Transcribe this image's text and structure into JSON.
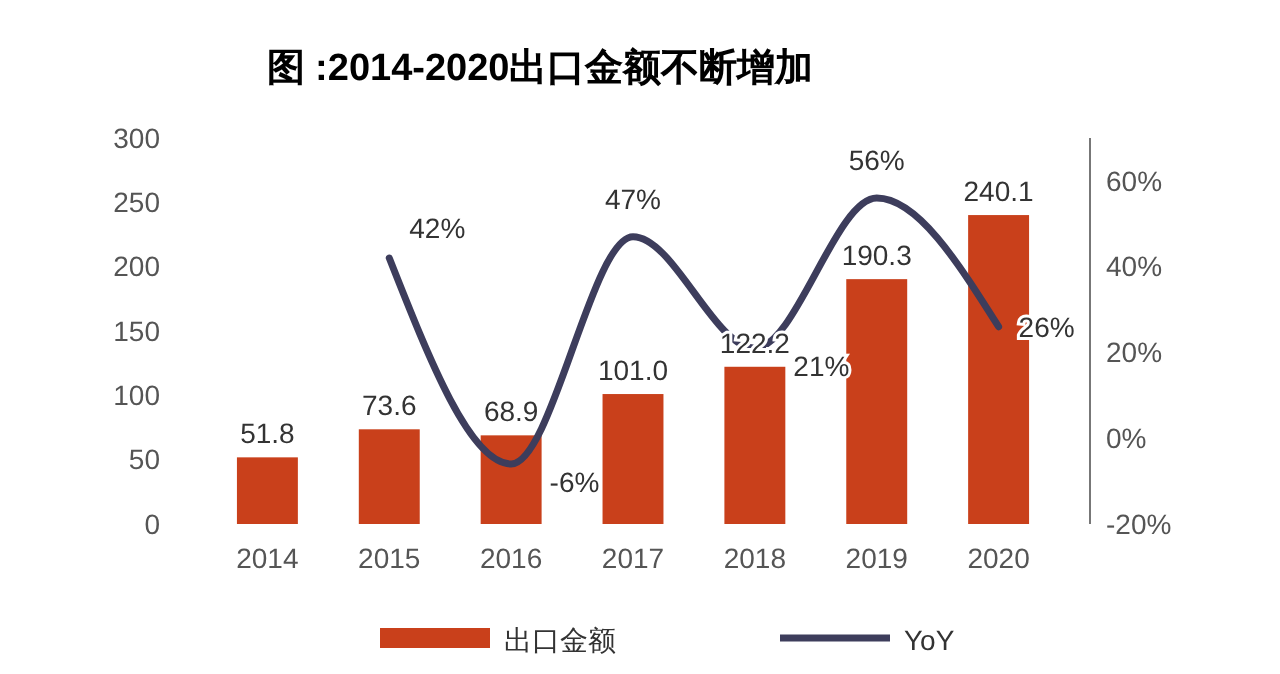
{
  "chart_data": {
    "type": "bar",
    "title": "图 :2014-2020出口金额不断增加",
    "categories": [
      "2014",
      "2015",
      "2016",
      "2017",
      "2018",
      "2019",
      "2020"
    ],
    "series": [
      {
        "name": "出口金额",
        "color": "#c9401b",
        "values": [
          51.8,
          73.6,
          68.9,
          101.0,
          122.2,
          190.3,
          240.1
        ],
        "value_labels": [
          "51.8",
          "73.6",
          "68.9",
          "101.0",
          "122.2",
          "190.3",
          "240.1"
        ]
      },
      {
        "name": "YoY",
        "type": "line",
        "axis": "y2",
        "color": "#3d3d5c",
        "values": [
          null,
          42,
          -6,
          47,
          21,
          56,
          26
        ],
        "value_labels": [
          null,
          "42%",
          "-6%",
          "47%",
          "21%",
          "56%",
          "26%"
        ]
      }
    ],
    "ylim": [
      0,
      300
    ],
    "yticks": [
      0,
      50,
      100,
      150,
      200,
      250,
      300
    ],
    "y2lim": [
      -20,
      70
    ],
    "y2ticks": [
      {
        "value": -20,
        "label": "-20%"
      },
      {
        "value": 0,
        "label": "0%"
      },
      {
        "value": 20,
        "label": "20%"
      },
      {
        "value": 40,
        "label": "40%"
      },
      {
        "value": 60,
        "label": "60%"
      }
    ],
    "grid": false,
    "legend": "bottom",
    "line_style": "solid",
    "marker": "none"
  }
}
